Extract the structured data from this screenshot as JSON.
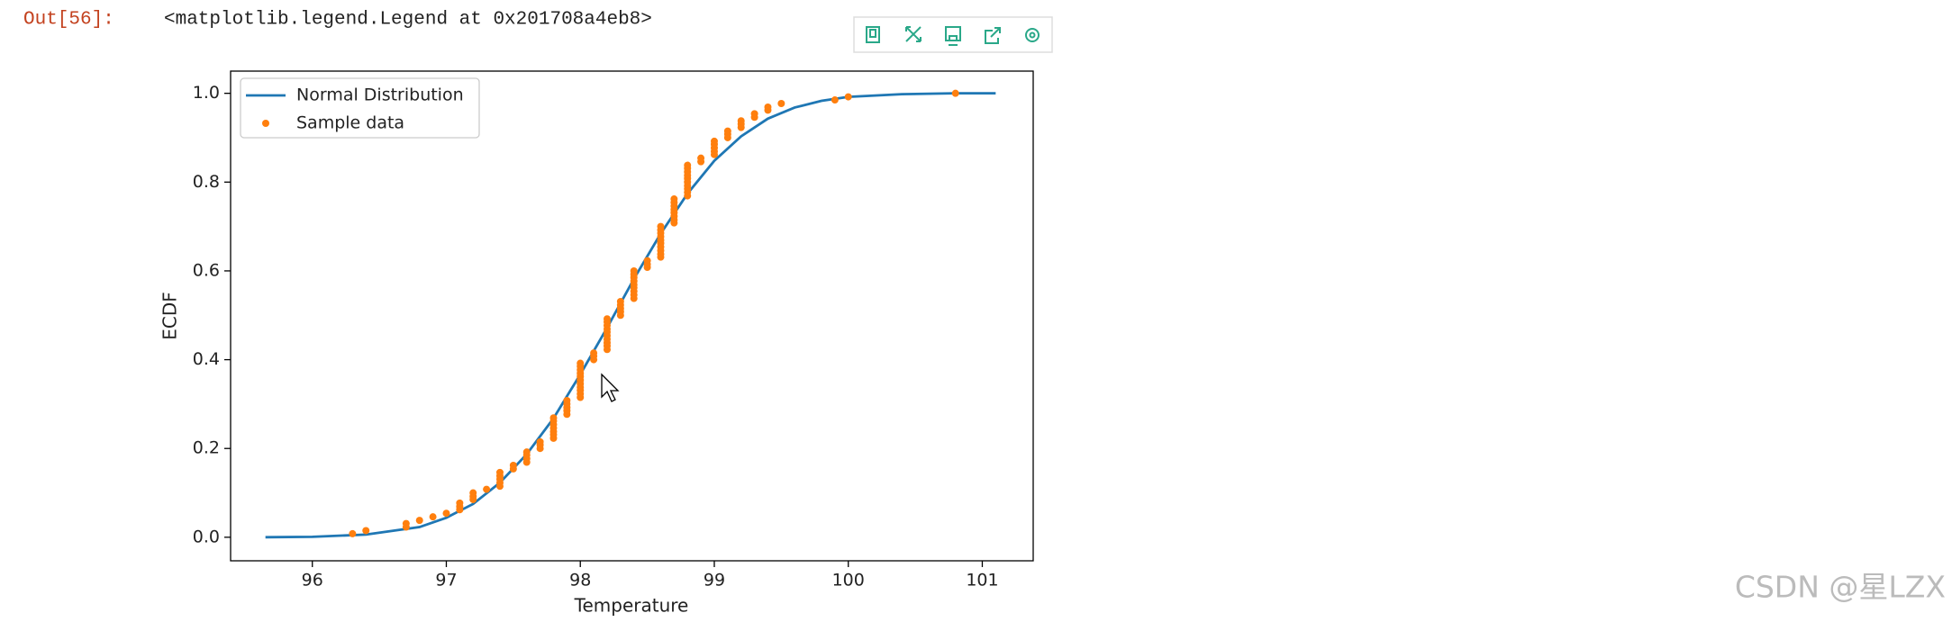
{
  "notebook": {
    "prompt": "Out[56]:",
    "output": "<matplotlib.legend.Legend at 0x201708a4eb8>"
  },
  "chart_data": {
    "type": "line",
    "xlabel": "Temperature",
    "ylabel": "ECDF",
    "xlim": [
      95.39,
      101.38
    ],
    "ylim": [
      -0.053,
      1.05
    ],
    "xticks": [
      96,
      97,
      98,
      99,
      100,
      101
    ],
    "yticks": [
      {
        "value": 0,
        "label": "0.0"
      },
      0.2,
      0.4,
      0.6,
      0.8,
      {
        "value": 1,
        "label": "1.0"
      }
    ],
    "legend": "upper left",
    "series": [
      {
        "name": "Normal Distribution",
        "type": "line",
        "color": "#1f77b4",
        "x": [
          95.65,
          96.0,
          96.4,
          96.8,
          97.0,
          97.2,
          97.4,
          97.6,
          97.8,
          98.0,
          98.2,
          98.4,
          98.6,
          98.8,
          99.0,
          99.2,
          99.4,
          99.6,
          99.8,
          100.0,
          100.4,
          100.8,
          101.1
        ],
        "values": [
          0.0001,
          0.001,
          0.006,
          0.023,
          0.044,
          0.075,
          0.123,
          0.187,
          0.268,
          0.367,
          0.472,
          0.582,
          0.684,
          0.774,
          0.848,
          0.903,
          0.943,
          0.968,
          0.983,
          0.992,
          0.998,
          1.0,
          1.0
        ]
      },
      {
        "name": "Sample data",
        "type": "scatter",
        "color": "#ff7f0e",
        "x": [
          96.3,
          96.4,
          96.7,
          96.7,
          96.8,
          96.9,
          97.0,
          97.1,
          97.1,
          97.1,
          97.2,
          97.2,
          97.2,
          97.3,
          97.4,
          97.4,
          97.4,
          97.4,
          97.4,
          97.5,
          97.5,
          97.6,
          97.6,
          97.6,
          97.6,
          97.7,
          97.7,
          97.7,
          97.8,
          97.8,
          97.8,
          97.8,
          97.8,
          97.8,
          97.8,
          97.9,
          97.9,
          97.9,
          97.9,
          97.9,
          98.0,
          98.0,
          98.0,
          98.0,
          98.0,
          98.0,
          98.0,
          98.0,
          98.0,
          98.0,
          98.0,
          98.1,
          98.1,
          98.1,
          98.2,
          98.2,
          98.2,
          98.2,
          98.2,
          98.2,
          98.2,
          98.2,
          98.2,
          98.2,
          98.3,
          98.3,
          98.3,
          98.3,
          98.3,
          98.4,
          98.4,
          98.4,
          98.4,
          98.4,
          98.4,
          98.4,
          98.4,
          98.4,
          98.5,
          98.5,
          98.5,
          98.6,
          98.6,
          98.6,
          98.6,
          98.6,
          98.6,
          98.6,
          98.6,
          98.6,
          98.6,
          98.7,
          98.7,
          98.7,
          98.7,
          98.7,
          98.7,
          98.7,
          98.7,
          98.8,
          98.8,
          98.8,
          98.8,
          98.8,
          98.8,
          98.8,
          98.8,
          98.8,
          98.8,
          98.9,
          98.9,
          99.0,
          99.0,
          99.0,
          99.0,
          99.0,
          99.1,
          99.1,
          99.1,
          99.2,
          99.2,
          99.2,
          99.3,
          99.3,
          99.4,
          99.4,
          99.5,
          99.9,
          100.0,
          100.8
        ],
        "values": [
          0.008,
          0.015,
          0.023,
          0.031,
          0.038,
          0.046,
          0.054,
          0.062,
          0.069,
          0.077,
          0.085,
          0.092,
          0.1,
          0.108,
          0.115,
          0.123,
          0.131,
          0.138,
          0.146,
          0.154,
          0.162,
          0.169,
          0.177,
          0.185,
          0.192,
          0.2,
          0.208,
          0.215,
          0.223,
          0.231,
          0.238,
          0.246,
          0.254,
          0.262,
          0.269,
          0.277,
          0.285,
          0.292,
          0.3,
          0.308,
          0.315,
          0.323,
          0.331,
          0.338,
          0.346,
          0.354,
          0.362,
          0.369,
          0.377,
          0.385,
          0.392,
          0.4,
          0.408,
          0.415,
          0.423,
          0.431,
          0.438,
          0.446,
          0.454,
          0.462,
          0.469,
          0.477,
          0.485,
          0.492,
          0.5,
          0.508,
          0.515,
          0.523,
          0.531,
          0.538,
          0.546,
          0.554,
          0.562,
          0.569,
          0.577,
          0.585,
          0.592,
          0.6,
          0.608,
          0.615,
          0.623,
          0.631,
          0.638,
          0.646,
          0.654,
          0.662,
          0.669,
          0.677,
          0.685,
          0.692,
          0.7,
          0.708,
          0.715,
          0.723,
          0.731,
          0.738,
          0.746,
          0.754,
          0.762,
          0.769,
          0.777,
          0.785,
          0.792,
          0.8,
          0.808,
          0.815,
          0.823,
          0.831,
          0.838,
          0.846,
          0.854,
          0.862,
          0.869,
          0.877,
          0.885,
          0.892,
          0.9,
          0.908,
          0.915,
          0.923,
          0.931,
          0.938,
          0.946,
          0.954,
          0.962,
          0.969,
          0.977,
          0.985,
          0.992,
          1.0
        ]
      }
    ]
  },
  "watermark": "CSDN @星LZX"
}
